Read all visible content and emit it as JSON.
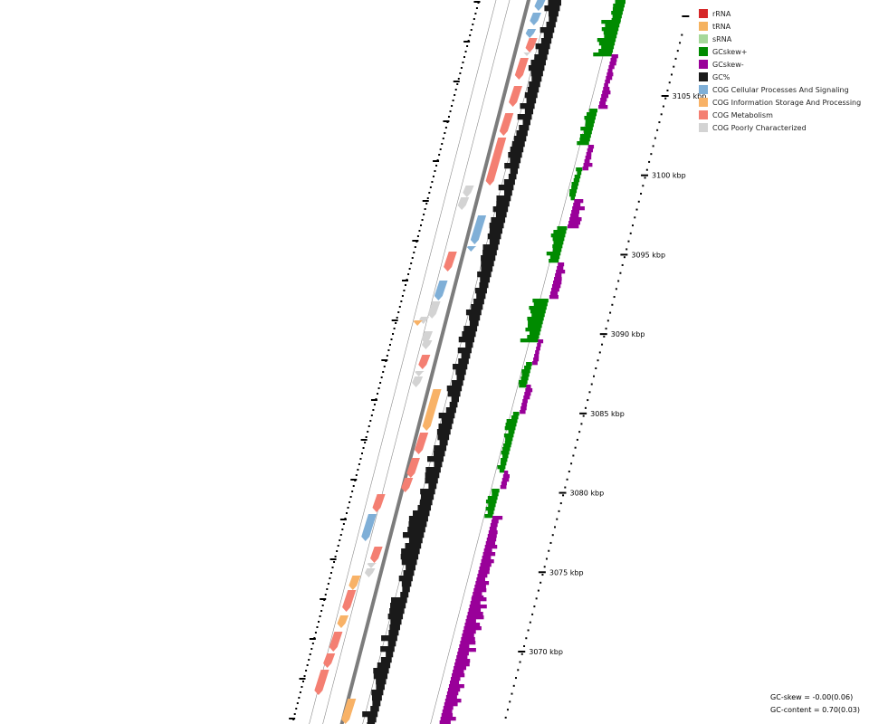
{
  "legend": [
    {
      "label": "rRNA",
      "color": "#d62728"
    },
    {
      "label": "tRNA",
      "color": "#f5b25f"
    },
    {
      "label": "sRNA",
      "color": "#a6d89a"
    },
    {
      "label": "GCskew+",
      "color": "#008b00"
    },
    {
      "label": "GCskew-",
      "color": "#990099"
    },
    {
      "label": "GC%",
      "color": "#1a1a1a"
    },
    {
      "label": "COG Cellular Processes And Signaling",
      "color": "#7fafd7"
    },
    {
      "label": "COG Information Storage And Processing",
      "color": "#f8b267"
    },
    {
      "label": "COG Metabolism",
      "color": "#f47f72"
    },
    {
      "label": "COG Poorly Characterized",
      "color": "#d3d3d3"
    }
  ],
  "scale": {
    "unit": "kbp",
    "major_ticks_kbp": [
      3070,
      3075,
      3080,
      3085,
      3090,
      3095,
      3100,
      3105
    ],
    "labels": [
      "3070 kbp",
      "3075 kbp",
      "3080 kbp",
      "3085 kbp",
      "3090 kbp",
      "3095 kbp",
      "3100 kbp",
      "3105 kbp"
    ]
  },
  "stats": {
    "gc_skew": "GC-skew = -0.00(0.06)",
    "gc_content": "GC-content = 0.70(0.03)"
  }
}
